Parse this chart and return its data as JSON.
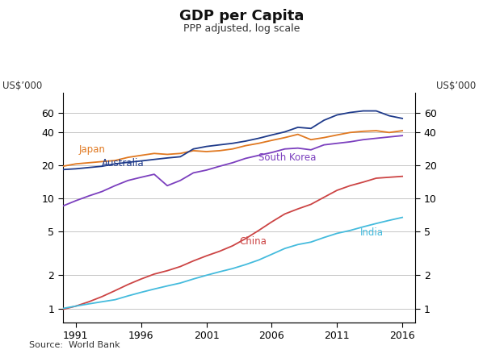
{
  "title": "GDP per Capita",
  "subtitle": "PPP adjusted, log scale",
  "ylabel_left": "US$’000",
  "ylabel_right": "US$’000",
  "source": "Source:  World Bank",
  "years": [
    1990,
    1991,
    1992,
    1993,
    1994,
    1995,
    1996,
    1997,
    1998,
    1999,
    2000,
    2001,
    2002,
    2003,
    2004,
    2005,
    2006,
    2007,
    2008,
    2009,
    2010,
    2011,
    2012,
    2013,
    2014,
    2015,
    2016
  ],
  "australia": [
    18.2,
    18.5,
    19.0,
    19.5,
    20.5,
    21.2,
    21.8,
    22.5,
    23.2,
    23.8,
    28.0,
    29.5,
    30.5,
    31.5,
    33.0,
    35.0,
    37.5,
    40.0,
    44.0,
    43.0,
    51.0,
    57.0,
    60.0,
    62.0,
    62.0,
    56.0,
    53.0
  ],
  "japan": [
    19.5,
    20.5,
    21.0,
    21.5,
    22.0,
    23.5,
    24.5,
    25.5,
    25.0,
    25.5,
    27.0,
    26.5,
    27.0,
    28.0,
    30.0,
    31.5,
    33.5,
    35.5,
    38.0,
    34.0,
    35.5,
    37.5,
    39.5,
    40.5,
    41.0,
    39.5,
    41.0
  ],
  "south_korea": [
    8.5,
    9.5,
    10.5,
    11.5,
    13.0,
    14.5,
    15.5,
    16.5,
    13.0,
    14.5,
    17.0,
    18.0,
    19.5,
    21.0,
    23.0,
    24.5,
    26.0,
    28.0,
    28.5,
    27.5,
    30.5,
    31.5,
    32.5,
    34.0,
    35.0,
    36.0,
    37.0
  ],
  "china": [
    0.98,
    1.05,
    1.15,
    1.28,
    1.45,
    1.65,
    1.85,
    2.05,
    2.2,
    2.4,
    2.7,
    3.0,
    3.3,
    3.7,
    4.3,
    5.1,
    6.1,
    7.2,
    8.0,
    8.8,
    10.2,
    11.8,
    13.0,
    14.0,
    15.2,
    15.5,
    15.8
  ],
  "india": [
    1.0,
    1.05,
    1.1,
    1.15,
    1.2,
    1.3,
    1.4,
    1.5,
    1.6,
    1.7,
    1.85,
    2.0,
    2.15,
    2.3,
    2.5,
    2.75,
    3.1,
    3.5,
    3.8,
    4.0,
    4.4,
    4.8,
    5.1,
    5.5,
    5.9,
    6.3,
    6.7
  ],
  "colors": {
    "australia": "#1e3a8a",
    "japan": "#e07820",
    "south_korea": "#7b3fbe",
    "china": "#cc4444",
    "india": "#44bbdd"
  },
  "yticks": [
    1,
    2,
    5,
    10,
    20,
    40,
    60
  ],
  "ylim": [
    0.75,
    90
  ],
  "xlim": [
    1990.0,
    2017.0
  ],
  "xticks": [
    1991,
    1996,
    2001,
    2006,
    2011,
    2016
  ]
}
